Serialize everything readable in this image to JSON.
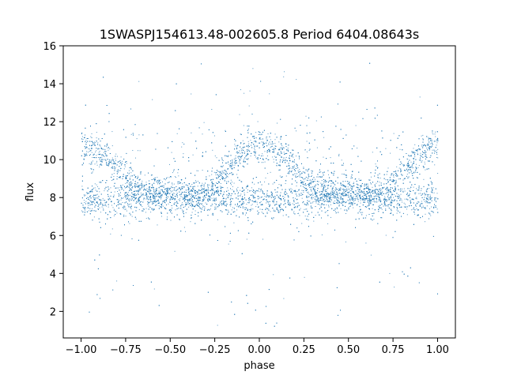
{
  "chart_data": {
    "type": "scatter",
    "title": "1SWASPJ154613.48-002605.8 Period 6404.08643s",
    "xlabel": "phase",
    "ylabel": "flux",
    "xlim": [
      -1.1,
      1.1
    ],
    "ylim": [
      0.6,
      16.0
    ],
    "xticks": [
      -1.0,
      -0.75,
      -0.5,
      -0.25,
      0.0,
      0.25,
      0.5,
      0.75,
      1.0
    ],
    "xtick_labels": [
      "−1.00",
      "−0.75",
      "−0.50",
      "−0.25",
      "0.00",
      "0.25",
      "0.50",
      "0.75",
      "1.00"
    ],
    "yticks": [
      2,
      4,
      6,
      8,
      10,
      12,
      14,
      16
    ],
    "ytick_labels": [
      "2",
      "4",
      "6",
      "8",
      "10",
      "12",
      "14",
      "16"
    ],
    "grid": false,
    "legend": "none",
    "marker_color": "#1f77b4",
    "series": [
      {
        "phase_range": [
          -1.0,
          1.0
        ],
        "periodic_in_phase": 1.0,
        "trend_phase": [
          0.0,
          0.1,
          0.2,
          0.3,
          0.4,
          0.5,
          0.6,
          0.7,
          0.8,
          0.9,
          1.0
        ],
        "trend_flux_high": [
          10.9,
          10.5,
          9.6,
          8.6,
          8.1,
          8.0,
          7.9,
          8.3,
          9.3,
          10.3,
          10.9
        ],
        "trend_flux_low": [
          7.9,
          7.8,
          7.9,
          8.0,
          8.2,
          8.4,
          8.2,
          8.0,
          7.9,
          7.8,
          7.9
        ],
        "band_flux_range": [
          7.0,
          11.2
        ],
        "outlier_flux_range": [
          1.2,
          15.3
        ]
      }
    ]
  }
}
